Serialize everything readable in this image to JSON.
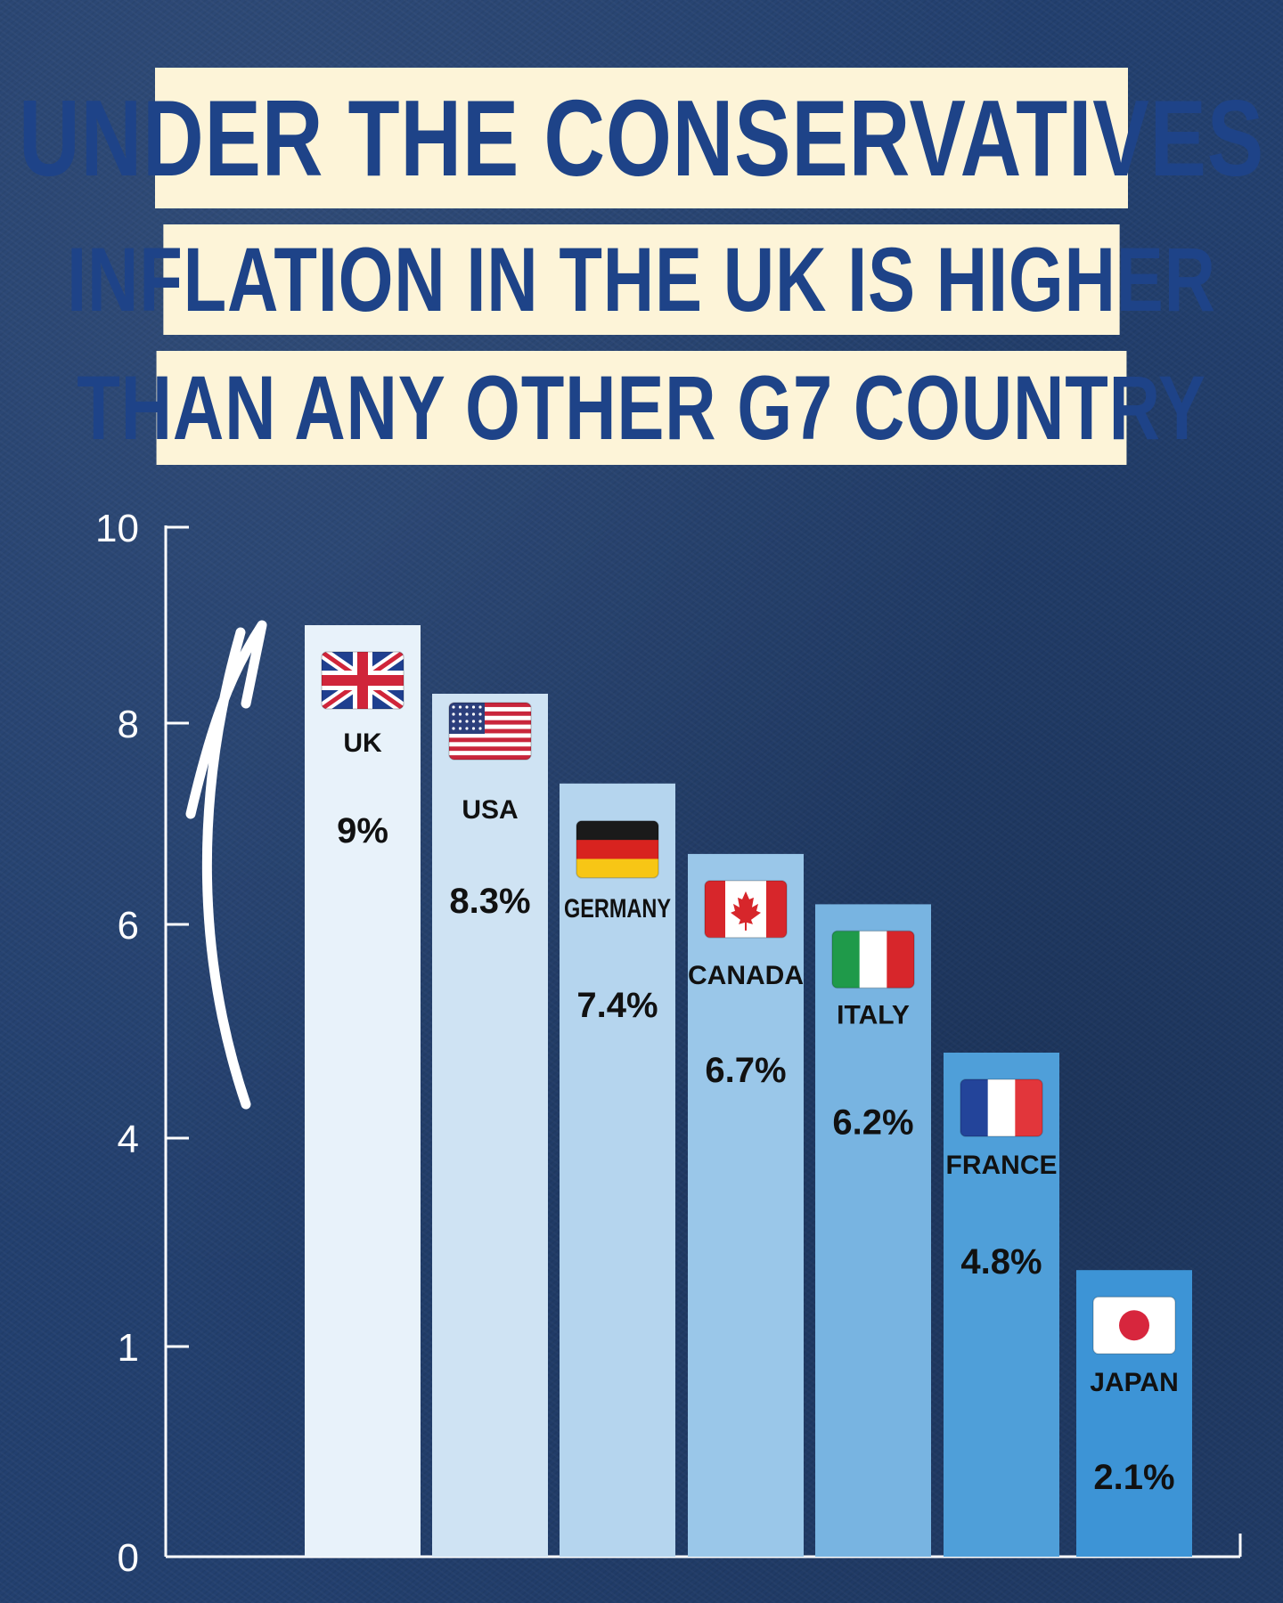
{
  "headline": {
    "line1": "UNDER THE CONSERVATIVES",
    "line2": "INFLATION IN THE UK IS HIGHER",
    "line3": "THAN ANY OTHER G7 COUNTRY"
  },
  "colors": {
    "background": "#23406f",
    "headline_box": "#fdf4d8",
    "headline_text": "#1e4388",
    "axis": "#ffffff",
    "bar_fills": [
      "#e8f2fa",
      "#cfe3f3",
      "#b5d5ee",
      "#9ac7e9",
      "#78b4e1",
      "#4f9fd9",
      "#3d94d6"
    ]
  },
  "chart_data": {
    "type": "bar",
    "categories": [
      "UK",
      "USA",
      "GERMANY",
      "CANADA",
      "ITALY",
      "FRANCE",
      "JAPAN"
    ],
    "values": [
      9,
      8.3,
      7.4,
      6.7,
      6.2,
      4.8,
      2.1
    ],
    "value_labels": [
      "9%",
      "8.3%",
      "7.4%",
      "6.7%",
      "6.2%",
      "4.8%",
      "2.1%"
    ],
    "flags": [
      "uk-flag-icon",
      "usa-flag-icon",
      "germany-flag-icon",
      "canada-flag-icon",
      "italy-flag-icon",
      "france-flag-icon",
      "japan-flag-icon"
    ],
    "y_ticks": [
      {
        "label": "0",
        "value": 0
      },
      {
        "label": "1",
        "value": 1
      },
      {
        "label": "4",
        "value": 4
      },
      {
        "label": "6",
        "value": 6
      },
      {
        "label": "8",
        "value": 8
      },
      {
        "label": "10",
        "value": 10
      }
    ],
    "ylim": [
      0,
      10
    ],
    "grid": false,
    "annotation": "upward-arrow"
  }
}
